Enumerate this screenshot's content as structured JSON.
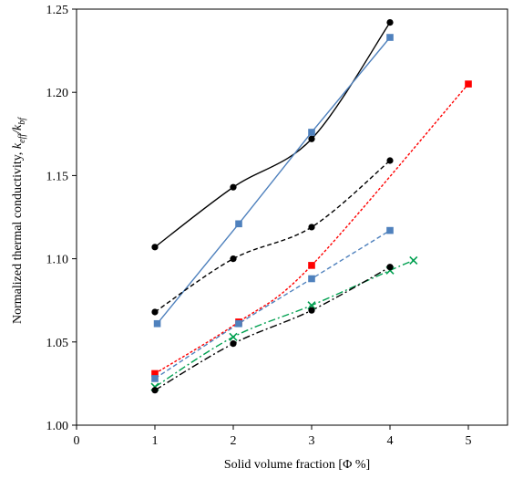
{
  "chart_data": {
    "type": "line",
    "title": "",
    "xlabel": "Solid volume fraction [Φ %]",
    "ylabel_main": "Normalized thermal conductivity, ",
    "ylabel_k": "k",
    "ylabel_sub1": "eff",
    "ylabel_slash": "/k",
    "ylabel_sub2": "bf",
    "xlim": [
      0,
      5.5
    ],
    "ylim": [
      1.0,
      1.25
    ],
    "xticks": [
      0,
      1,
      2,
      3,
      4,
      5
    ],
    "yticks": [
      1.0,
      1.05,
      1.1,
      1.15,
      1.2,
      1.25
    ],
    "ytick_labels": [
      "1.00",
      "1.05",
      "1.10",
      "1.15",
      "1.20",
      "1.25"
    ],
    "grid": false,
    "legend": false,
    "series": [
      {
        "color": "#000000",
        "style": "solid",
        "marker": "circle",
        "smooth": true,
        "points": [
          [
            1.0,
            1.107
          ],
          [
            2.0,
            1.143
          ],
          [
            3.0,
            1.172
          ],
          [
            4.0,
            1.242
          ]
        ]
      },
      {
        "color": "#4f81bd",
        "style": "solid",
        "marker": "square",
        "smooth": false,
        "points": [
          [
            1.03,
            1.061
          ],
          [
            2.07,
            1.121
          ],
          [
            3.0,
            1.176
          ],
          [
            4.0,
            1.233
          ]
        ]
      },
      {
        "color": "#000000",
        "style": "dashed",
        "marker": "circle",
        "smooth": true,
        "points": [
          [
            1.0,
            1.068
          ],
          [
            2.0,
            1.1
          ],
          [
            3.0,
            1.119
          ],
          [
            4.0,
            1.159
          ]
        ]
      },
      {
        "color": "#ff0000",
        "style": "dotted",
        "marker": "square",
        "smooth": true,
        "points": [
          [
            1.0,
            1.031
          ],
          [
            2.07,
            1.062
          ],
          [
            3.0,
            1.096
          ],
          [
            5.0,
            1.205
          ]
        ]
      },
      {
        "color": "#4f81bd",
        "style": "dashed",
        "marker": "square",
        "smooth": true,
        "points": [
          [
            1.0,
            1.028
          ],
          [
            2.07,
            1.061
          ],
          [
            3.0,
            1.088
          ],
          [
            4.0,
            1.117
          ]
        ]
      },
      {
        "color": "#00a050",
        "style": "dashdot",
        "marker": "x",
        "smooth": true,
        "points": [
          [
            1.0,
            1.023
          ],
          [
            2.0,
            1.053
          ],
          [
            3.0,
            1.072
          ],
          [
            4.0,
            1.093
          ],
          [
            4.3,
            1.099
          ]
        ]
      },
      {
        "color": "#000000",
        "style": "dashdot",
        "marker": "circle",
        "smooth": true,
        "points": [
          [
            1.0,
            1.021
          ],
          [
            2.0,
            1.049
          ],
          [
            3.0,
            1.069
          ],
          [
            4.0,
            1.095
          ]
        ]
      }
    ]
  }
}
